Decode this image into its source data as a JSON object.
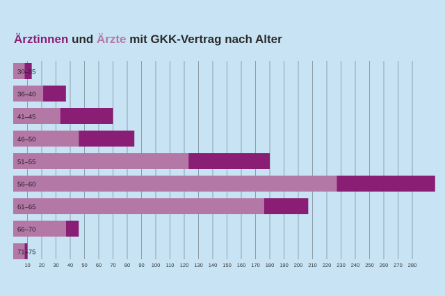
{
  "chart_data": {
    "type": "bar",
    "stacked": true,
    "orientation": "horizontal",
    "title": {
      "part1": "Ärztinnen",
      "part2": " und ",
      "part3": "Ärzte",
      "part4": " mit GKK-Vertrag nach Alter"
    },
    "categories": [
      "30–35",
      "36–40",
      "41–45",
      "46–50",
      "51–55",
      "56–60",
      "61–65",
      "66–70",
      "71–75"
    ],
    "series": [
      {
        "name": "Ärzte",
        "color": "#b478a6",
        "values": [
          8,
          21,
          33,
          46,
          123,
          227,
          176,
          37,
          8
        ]
      },
      {
        "name": "Ärztinnen",
        "color": "#8a1e74",
        "values": [
          5,
          16,
          37,
          39,
          57,
          69,
          31,
          9,
          2
        ]
      }
    ],
    "x_ticks": [
      10,
      20,
      30,
      40,
      50,
      60,
      70,
      80,
      90,
      100,
      110,
      120,
      130,
      140,
      150,
      160,
      170,
      180,
      190,
      200,
      210,
      220,
      230,
      240,
      250,
      260,
      270,
      280
    ],
    "xlim": [
      0,
      300
    ],
    "grid": true
  }
}
